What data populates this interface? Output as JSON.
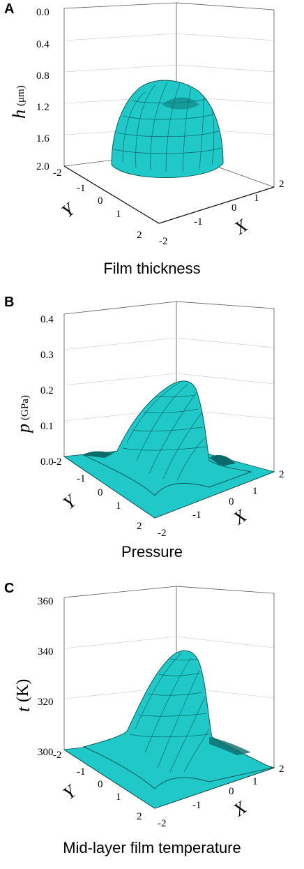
{
  "panels": [
    {
      "letter": "A",
      "caption": "Film thickness"
    },
    {
      "letter": "B",
      "caption": "Pressure"
    },
    {
      "letter": "C",
      "caption": "Mid-layer film temperature"
    }
  ],
  "chart_data": [
    {
      "type": "surface3d",
      "zlabel": "h",
      "zunit": "(μm)",
      "xlabel": "X",
      "ylabel": "Y",
      "zticks": [
        "0.0",
        "0.4",
        "0.8",
        "1.2",
        "1.6",
        "2.0"
      ],
      "zlim": [
        2.0,
        0.0
      ],
      "z_inverted": true,
      "xticks": [
        "-2",
        "-1",
        "0",
        "1",
        "2"
      ],
      "yticks": [
        "-2",
        "-1",
        "0",
        "1",
        "2"
      ],
      "xlim": [
        -2,
        2
      ],
      "ylim": [
        -2,
        2
      ],
      "surface_color": "#20c8c8",
      "surface_peak": 0.88
    },
    {
      "type": "surface3d",
      "zlabel": "p",
      "zunit": "(GPa)",
      "xlabel": "X",
      "ylabel": "Y",
      "zticks": [
        "0.0",
        "0.1",
        "0.2",
        "0.3",
        "0.4"
      ],
      "zlim": [
        0.0,
        0.4
      ],
      "xticks": [
        "-2",
        "-1",
        "0",
        "1",
        "2"
      ],
      "yticks": [
        "-2",
        "-1",
        "0",
        "1",
        "2"
      ],
      "xlim": [
        -2,
        2
      ],
      "ylim": [
        -2,
        2
      ],
      "surface_color": "#20c8c8",
      "surface_peak": 0.22
    },
    {
      "type": "surface3d",
      "zlabel": "t",
      "zunit": "(K)",
      "xlabel": "X",
      "ylabel": "Y",
      "zticks": [
        "300",
        "320",
        "340",
        "360"
      ],
      "zlim": [
        300,
        360
      ],
      "xticks": [
        "-2",
        "-1",
        "0",
        "1",
        "2"
      ],
      "yticks": [
        "-2",
        "-1",
        "0",
        "1",
        "2"
      ],
      "xlim": [
        -2,
        2
      ],
      "ylim": [
        -2,
        2
      ],
      "surface_color": "#20c8c8",
      "surface_peak": 337
    }
  ]
}
